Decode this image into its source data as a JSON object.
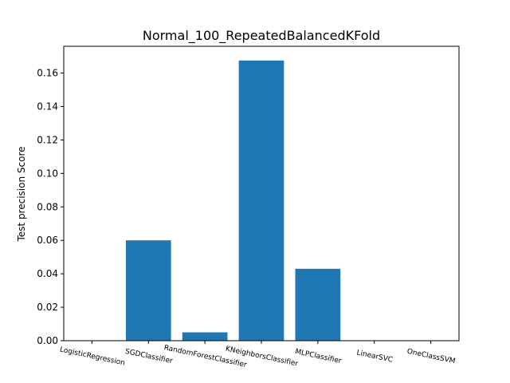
{
  "chart_data": {
    "type": "bar",
    "title": "Normal_100_RepeatedBalancedKFold",
    "xlabel": "",
    "ylabel": "Test precision Score",
    "categories": [
      "LogisticRegression",
      "SGDClassifier",
      "RandomForestClassifier",
      "KNeighborsClassifier",
      "MLPClassifier",
      "LinearSVC",
      "OneClassSVM"
    ],
    "values": [
      0.0,
      0.06,
      0.005,
      0.1675,
      0.043,
      0.0,
      0.0
    ],
    "ylim": [
      0,
      0.176
    ],
    "yticks": [
      "0.00",
      "0.02",
      "0.04",
      "0.06",
      "0.08",
      "0.10",
      "0.12",
      "0.14",
      "0.16"
    ],
    "bar_color": "#1f77b4",
    "grid": false,
    "legend": "none"
  }
}
